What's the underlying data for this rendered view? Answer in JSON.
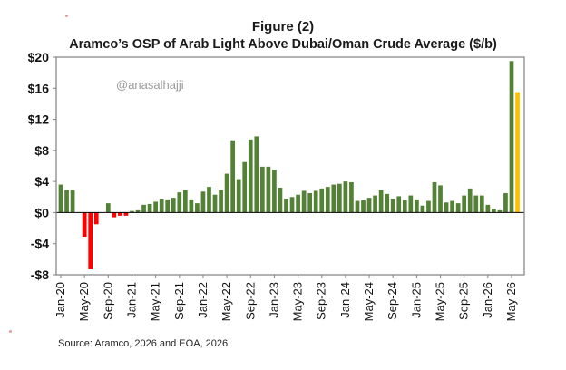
{
  "figure_label": "Figure (2)",
  "watermark": "@anasalhajji",
  "source": "Source: Aramco, 2026 and EOA, 2026",
  "colors": {
    "positive": "#538135",
    "negative": "#ff0000",
    "forecast": "#ffc000",
    "frame": "#808080"
  },
  "chart_data": {
    "type": "bar",
    "title": "Aramco’s OSP of Arab Light Above Dubai/Oman Crude Average ($/b)",
    "xlabel": "",
    "ylabel": "",
    "ylim": [
      -8,
      20
    ],
    "yticks": [
      20,
      16,
      12,
      8,
      4,
      0,
      -4,
      -8
    ],
    "ytick_labels": [
      "$20",
      "$16",
      "$12",
      "$8",
      "$4",
      "$0",
      "-$4",
      "-$8"
    ],
    "grid": false,
    "xtick_labels": [
      "Jan-20",
      "May-20",
      "Sep-20",
      "Jan-21",
      "May-21",
      "Sep-21",
      "Jan-22",
      "May-22",
      "Sep-22",
      "Jan-23",
      "May-23",
      "Sep-23",
      "Jan-24",
      "May-24",
      "Sep-24",
      "Jan-25",
      "May-25",
      "Sep-25",
      "Jan-26",
      "May-26"
    ],
    "categories": [
      "Jan-20",
      "Feb-20",
      "Mar-20",
      "Apr-20",
      "May-20",
      "Jun-20",
      "Jul-20",
      "Aug-20",
      "Sep-20",
      "Oct-20",
      "Nov-20",
      "Dec-20",
      "Jan-21",
      "Feb-21",
      "Mar-21",
      "Apr-21",
      "May-21",
      "Jun-21",
      "Jul-21",
      "Aug-21",
      "Sep-21",
      "Oct-21",
      "Nov-21",
      "Dec-21",
      "Jan-22",
      "Feb-22",
      "Mar-22",
      "Apr-22",
      "May-22",
      "Jun-22",
      "Jul-22",
      "Aug-22",
      "Sep-22",
      "Oct-22",
      "Nov-22",
      "Dec-22",
      "Jan-23",
      "Feb-23",
      "Mar-23",
      "Apr-23",
      "May-23",
      "Jun-23",
      "Jul-23",
      "Aug-23",
      "Sep-23",
      "Oct-23",
      "Nov-23",
      "Dec-23",
      "Jan-24",
      "Feb-24",
      "Mar-24",
      "Apr-24",
      "May-24",
      "Jun-24",
      "Jul-24",
      "Aug-24",
      "Sep-24",
      "Oct-24",
      "Nov-24",
      "Dec-24",
      "Jan-25",
      "Feb-25",
      "Mar-25",
      "Apr-25",
      "May-25",
      "Jun-25",
      "Jul-25",
      "Aug-25",
      "Sep-25",
      "Oct-25",
      "Nov-25",
      "Dec-25",
      "Jan-26",
      "Feb-26",
      "Mar-26",
      "Apr-26",
      "May-26"
    ],
    "values": [
      3.6,
      2.9,
      2.9,
      0,
      -3.1,
      -7.3,
      -1.5,
      0,
      1.2,
      -0.6,
      -0.4,
      -0.4,
      0.2,
      0.3,
      1.0,
      1.1,
      1.4,
      1.8,
      1.7,
      1.9,
      2.6,
      2.9,
      1.7,
      1.2,
      2.7,
      3.3,
      2.3,
      2.9,
      5.0,
      9.3,
      4.3,
      6.5,
      9.4,
      9.8,
      5.9,
      5.9,
      5.5,
      3.2,
      1.8,
      2.0,
      2.3,
      2.8,
      2.5,
      2.8,
      3.1,
      3.3,
      3.6,
      3.7,
      4.0,
      3.9,
      1.5,
      1.6,
      1.9,
      2.2,
      2.9,
      2.4,
      1.8,
      2.1,
      1.6,
      2.2,
      1.7,
      0.9,
      1.5,
      3.9,
      3.5,
      1.3,
      1.5,
      1.2,
      2.2,
      3.1,
      2.2,
      2.2,
      1.0,
      0.5,
      0.3,
      2.5,
      19.5
    ],
    "forecast": [
      {
        "category": "May-26",
        "value": 15.5
      }
    ]
  }
}
